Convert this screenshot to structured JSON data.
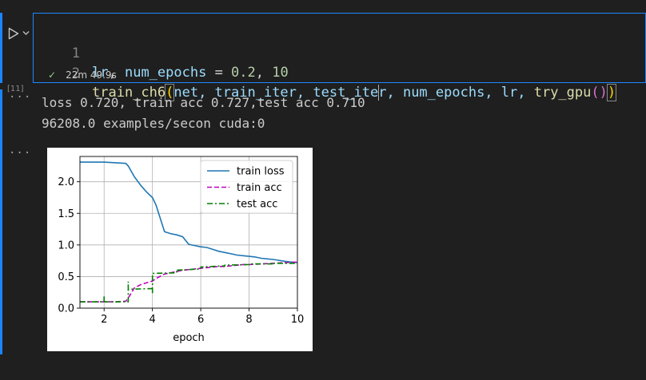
{
  "cell": {
    "execution_count": "[11]",
    "lines": [
      {
        "number": "1"
      },
      {
        "number": "2"
      }
    ],
    "code": {
      "line1": {
        "a": "lr",
        "b": ", ",
        "c": "num_epochs",
        "d": " = ",
        "e": "0.2",
        "f": ", ",
        "g": "10"
      },
      "line2": {
        "fn": "train_ch6",
        "open": "(",
        "args1": "net, train_iter, test_ite",
        "args2": "r, num_epochs, lr, ",
        "fn2": "try_gpu",
        "inner": "()",
        "close": ")"
      }
    },
    "status_time": "22m 49.9s",
    "run_icon": "play-icon",
    "check_icon": "check-icon"
  },
  "output": {
    "ellipsis": "···",
    "line1": "loss 0.720, train acc 0.727,test acc 0.710",
    "line2": "96208.0 examples/secon cuda:0"
  },
  "colors": {
    "accent": "#1a85ff",
    "train_loss": "#1f77b4",
    "train_acc": "#bf00bf",
    "test_acc": "#007f00"
  },
  "chart_data": {
    "type": "line",
    "xlabel": "epoch",
    "ylabel": "",
    "xlim": [
      1,
      10
    ],
    "ylim": [
      0,
      2.4
    ],
    "xticks": [
      "2",
      "4",
      "6",
      "8",
      "10"
    ],
    "yticks": [
      "0.0",
      "0.5",
      "1.0",
      "1.5",
      "2.0"
    ],
    "xtick_values": [
      2,
      4,
      6,
      8,
      10
    ],
    "ytick_values": [
      0,
      0.5,
      1.0,
      1.5,
      2.0
    ],
    "grid": true,
    "legend": "top-right",
    "series": [
      {
        "name": "train loss",
        "style": "solid",
        "x": [
          1.0,
          1.5,
          2.0,
          2.5,
          2.9,
          3.0,
          3.25,
          3.5,
          3.75,
          4.0,
          4.15,
          4.5,
          4.75,
          5.0,
          5.25,
          5.5,
          5.75,
          6.0,
          6.25,
          6.5,
          6.75,
          7.0,
          7.25,
          7.5,
          7.75,
          8.0,
          8.25,
          8.5,
          8.75,
          9.0,
          9.5,
          10.0
        ],
        "y": [
          2.31,
          2.31,
          2.31,
          2.3,
          2.29,
          2.25,
          2.08,
          1.95,
          1.84,
          1.75,
          1.63,
          1.21,
          1.18,
          1.16,
          1.13,
          1.01,
          0.99,
          0.97,
          0.96,
          0.93,
          0.9,
          0.88,
          0.86,
          0.84,
          0.83,
          0.82,
          0.81,
          0.79,
          0.78,
          0.77,
          0.74,
          0.72
        ]
      },
      {
        "name": "train acc",
        "style": "dashed",
        "x": [
          1.0,
          1.5,
          2.0,
          2.5,
          2.9,
          3.0,
          3.25,
          3.5,
          3.75,
          4.0,
          4.15,
          4.5,
          4.75,
          5.0,
          5.25,
          5.5,
          5.75,
          6.0,
          6.25,
          6.5,
          6.75,
          7.0,
          7.25,
          7.5,
          7.75,
          8.0,
          8.5,
          9.0,
          9.5,
          10.0
        ],
        "y": [
          0.1,
          0.1,
          0.1,
          0.1,
          0.11,
          0.16,
          0.32,
          0.37,
          0.4,
          0.43,
          0.47,
          0.54,
          0.56,
          0.58,
          0.6,
          0.61,
          0.62,
          0.63,
          0.64,
          0.65,
          0.66,
          0.66,
          0.67,
          0.68,
          0.69,
          0.69,
          0.7,
          0.71,
          0.72,
          0.73
        ]
      },
      {
        "name": "test acc",
        "style": "dashdot",
        "x": [
          1.0,
          2.0,
          2.0,
          2.0,
          3.0,
          3.0,
          3.0,
          4.0,
          4.0,
          4.0,
          5.0,
          5.0,
          5.0,
          6.0,
          6.0,
          6.0,
          7.0,
          7.0,
          7.0,
          8.0,
          8.0,
          8.0,
          9.0,
          9.0,
          9.0,
          10.0
        ],
        "y": [
          0.1,
          0.1,
          0.2,
          0.1,
          0.1,
          0.42,
          0.3,
          0.31,
          0.22,
          0.55,
          0.56,
          0.61,
          0.6,
          0.62,
          0.66,
          0.65,
          0.67,
          0.69,
          0.68,
          0.69,
          0.69,
          0.7,
          0.7,
          0.69,
          0.71,
          0.71
        ]
      }
    ]
  }
}
